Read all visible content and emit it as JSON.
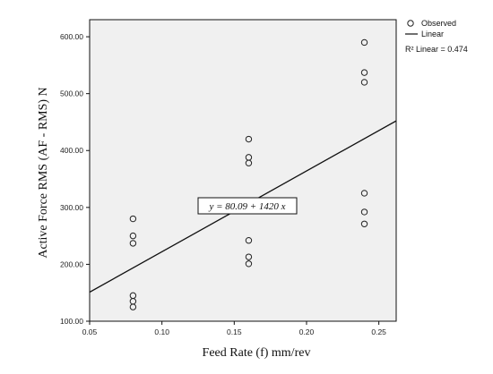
{
  "chart_data": {
    "type": "scatter",
    "xlabel": "Feed Rate (f) mm/rev",
    "ylabel": "Active Force RMS (AF - RMS) N",
    "xlim": [
      0.05,
      0.262
    ],
    "ylim": [
      100,
      630
    ],
    "x_ticks": [
      0.05,
      0.1,
      0.15,
      0.2,
      0.25
    ],
    "x_tick_labels": [
      "0.05",
      "0.10",
      "0.15",
      "0.20",
      "0.25"
    ],
    "y_ticks": [
      100,
      200,
      300,
      400,
      500,
      600
    ],
    "y_tick_labels": [
      "100.00",
      "200.00",
      "300.00",
      "400.00",
      "500.00",
      "600.00"
    ],
    "series": [
      {
        "name": "Observed",
        "points": [
          [
            0.08,
            280
          ],
          [
            0.08,
            250
          ],
          [
            0.08,
            237
          ],
          [
            0.08,
            145
          ],
          [
            0.08,
            135
          ],
          [
            0.08,
            125
          ],
          [
            0.16,
            420
          ],
          [
            0.16,
            388
          ],
          [
            0.16,
            378
          ],
          [
            0.16,
            242
          ],
          [
            0.16,
            213
          ],
          [
            0.16,
            201
          ],
          [
            0.24,
            590
          ],
          [
            0.24,
            537
          ],
          [
            0.24,
            520
          ],
          [
            0.24,
            325
          ],
          [
            0.24,
            292
          ],
          [
            0.24,
            271
          ]
        ]
      }
    ],
    "fit": {
      "name": "Linear",
      "intercept": 80.09,
      "slope": 1420,
      "equation_label": "y = 80.09 + 1420 x",
      "r2_label": "R² Linear = 0.474"
    },
    "legend": {
      "position": "top-right",
      "observed_label": "Observed",
      "linear_label": "Linear"
    },
    "plot_background": "#f0f0f0",
    "grid": false
  }
}
